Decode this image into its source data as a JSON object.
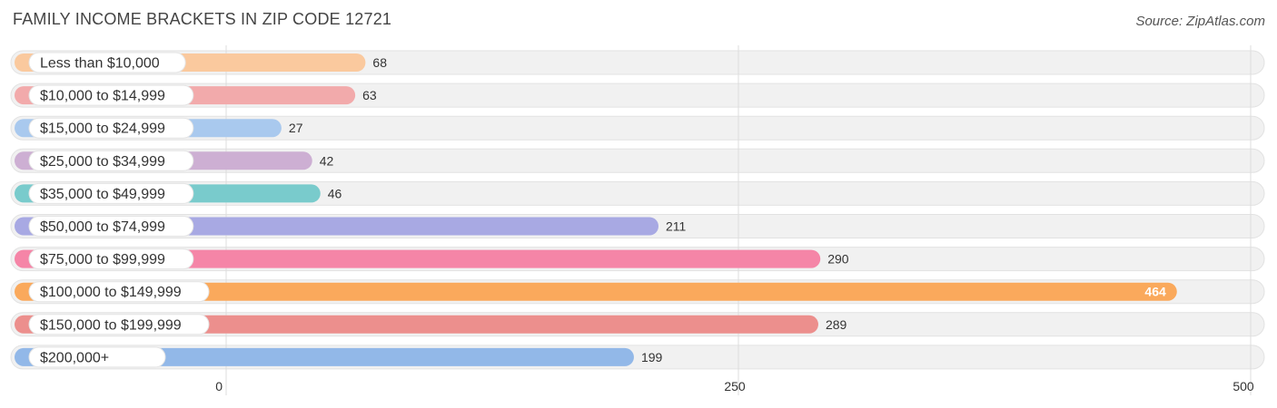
{
  "header": {
    "title": "FAMILY INCOME BRACKETS IN ZIP CODE 12721",
    "source": "Source: ZipAtlas.com"
  },
  "chart_data": {
    "type": "bar",
    "orientation": "horizontal",
    "title": "FAMILY INCOME BRACKETS IN ZIP CODE 12721",
    "xlabel": "",
    "ylabel": "",
    "categories": [
      "Less than $10,000",
      "$10,000 to $14,999",
      "$15,000 to $24,999",
      "$25,000 to $34,999",
      "$35,000 to $49,999",
      "$50,000 to $74,999",
      "$75,000 to $99,999",
      "$100,000 to $149,999",
      "$150,000 to $199,999",
      "$200,000+"
    ],
    "values": [
      68,
      63,
      27,
      42,
      46,
      211,
      290,
      464,
      289,
      199
    ],
    "colors": [
      "#fac99e",
      "#f2aaab",
      "#a9c9ee",
      "#cdafd3",
      "#79cbcc",
      "#a8a9e3",
      "#f585a7",
      "#faa95c",
      "#ec8f8d",
      "#92b8e8"
    ],
    "highlight_index": 7,
    "xlim": [
      0,
      500
    ],
    "xticks": [
      0,
      250,
      500
    ],
    "grid": true,
    "legend": "none"
  }
}
